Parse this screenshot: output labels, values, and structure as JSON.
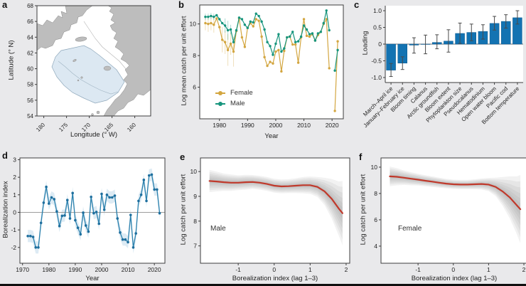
{
  "panels": {
    "a": {
      "label": "a",
      "xlabel": "Longitude (° W)",
      "ylabel": "Latitude (° N)"
    },
    "b": {
      "label": "b",
      "xlabel": "Year",
      "ylabel": "Log mean catch per unit effort",
      "legend": [
        "Female",
        "Male"
      ]
    },
    "c": {
      "label": "c",
      "ylabel": "Loading"
    },
    "d": {
      "label": "d",
      "xlabel": "Year",
      "ylabel": "Borealization index"
    },
    "e": {
      "label": "e",
      "xlabel": "Borealization index (lag 1–3)",
      "ylabel": "Log catch per unit effort",
      "annotation": "Male"
    },
    "f": {
      "label": "f",
      "xlabel": "Borealization index (lag 1–3)",
      "ylabel": "Log catch per unit effort",
      "annotation": "Female"
    }
  },
  "colors": {
    "female": "#d3a640",
    "male": "#17957d",
    "bar": "#1373b2",
    "bar_edge": "#0e5a8e",
    "index_line": "#2b81ad",
    "index_point": "#1e6f9e",
    "index_band": "#cfe2f0",
    "smooth_line": "#c0392b",
    "smooth_band": "#8a8a8a",
    "land": "#bdbdbd",
    "coast": "#8a8a8a",
    "survey_fill": "#dce8f2",
    "survey_edge": "#8fa8bb",
    "contour": "#b3b3b3",
    "frame": "#3c3c3c",
    "zero": "#9c9c9c",
    "err": "#4a4a4a",
    "background": "#e9e9eb"
  },
  "chart_data": [
    {
      "panel": "a",
      "type": "map",
      "xlabel": "Longitude (° W)",
      "ylabel": "Latitude (° N)",
      "lon_ticks": [
        180,
        175,
        170,
        165,
        160
      ],
      "lat_ticks": [
        68,
        66,
        64,
        62,
        60,
        58,
        56,
        54
      ],
      "xlim": [
        181.5,
        156.5
      ],
      "ylim": [
        54,
        68
      ],
      "features": [
        "land-masses",
        "survey-area-shaded",
        "bathymetry-contours"
      ]
    },
    {
      "panel": "b",
      "type": "line",
      "xlabel": "Year",
      "ylabel": "Log mean catch per unit effort",
      "x_ticks": [
        1980,
        1990,
        2000,
        2010,
        2020
      ],
      "y_ticks": [
        6,
        8,
        10
      ],
      "xlim": [
        1973,
        2024
      ],
      "ylim": [
        4,
        11.2
      ],
      "start_year": 1975,
      "series": [
        {
          "name": "Female",
          "values": [
            10.05,
            10.0,
            10.05,
            9.95,
            10.35,
            9.8,
            9.0,
            8.85,
            8.35,
            8.75,
            8.25,
            9.55,
            10.35,
            9.15,
            8.55,
            9.75,
            10.05,
            9.85,
            10.3,
            10.2,
            9.2,
            7.9,
            7.35,
            7.6,
            7.5,
            8.25,
            8.35,
            7.0,
            8.3,
            9.15,
            9.2,
            8.7,
            8.7,
            7.55,
            9.15,
            10.3,
            9.25,
            9.2,
            9.35,
            8.95,
            9.3,
            9.5,
            10.0,
            10.3,
            7.2,
            null,
            4.5,
            8.9
          ]
        },
        {
          "name": "Male",
          "values": [
            10.45,
            10.45,
            10.5,
            10.45,
            10.55,
            10.3,
            10.05,
            9.9,
            9.6,
            9.65,
            8.85,
            9.6,
            10.4,
            10.3,
            9.95,
            9.75,
            10.15,
            10.1,
            10.65,
            10.5,
            10.15,
            9.65,
            8.85,
            8.6,
            8.05,
            8.75,
            9.35,
            8.25,
            8.45,
            9.15,
            9.2,
            9.5,
            8.85,
            8.9,
            9.2,
            9.9,
            9.65,
            9.35,
            9.4,
            8.95,
            9.4,
            9.5,
            10.05,
            10.85,
            9.6,
            null,
            7.05,
            8.35
          ]
        }
      ],
      "errors": {
        "Female": {
          "1975": 0.45,
          "1976": 0.5,
          "1977": 0.45,
          "1978": 0.5,
          "1981": 0.8,
          "1982": 0.75,
          "1983": 1.0,
          "1984": 0.7,
          "1985": 0.95
        },
        "Male": {
          "1975": 0.2,
          "1976": 0.2,
          "1977": 0.2,
          "1978": 0.2,
          "1982": 0.45,
          "1983": 0.6,
          "1984": 0.3
        }
      }
    },
    {
      "panel": "c",
      "type": "bar",
      "ylabel": "Loading",
      "y_ticks": [
        "1.0",
        "0.5",
        "0",
        "-0.5",
        "-1.0"
      ],
      "ylim": [
        -1.15,
        1.15
      ],
      "categories": [
        "March–April ice",
        "January–February ice",
        "Bloom timing",
        "Calanus",
        "Arctic groundfish",
        "Bloom extent",
        "Phytoplankton size",
        "Pseudocalanus",
        "Hematodinium",
        "Open water bloom",
        "Pacific cod",
        "Bottom temperature"
      ],
      "values": [
        -0.78,
        -0.57,
        -0.03,
        -0.01,
        0.05,
        0.09,
        0.32,
        0.35,
        0.38,
        0.62,
        0.68,
        0.79
      ],
      "errors_low": [
        -0.97,
        -0.76,
        -0.27,
        -0.29,
        -0.14,
        -0.24,
        0.02,
        0.1,
        0.15,
        0.42,
        0.48,
        0.6
      ],
      "errors_high": [
        -0.58,
        -0.38,
        0.19,
        0.27,
        0.28,
        0.43,
        0.63,
        0.6,
        0.58,
        0.83,
        0.88,
        1.0
      ]
    },
    {
      "panel": "d",
      "type": "line",
      "xlabel": "Year",
      "ylabel": "Borealization index",
      "x_ticks": [
        1970,
        1980,
        1990,
        2000,
        2010,
        2020
      ],
      "y_ticks": [
        -2,
        -1,
        0,
        1,
        2,
        3
      ],
      "xlim": [
        1969,
        2024
      ],
      "ylim": [
        -2.9,
        3.1
      ],
      "start_year": 1972,
      "band_halfwidth": 0.35,
      "values": [
        -1.35,
        -1.35,
        -1.4,
        -2.0,
        -2.0,
        -0.6,
        0.55,
        1.45,
        0.5,
        0.85,
        0.75,
        0.05,
        -0.78,
        -0.2,
        -0.18,
        0.7,
        -0.35,
        1.1,
        -0.45,
        -0.88,
        -1.25,
        -0.02,
        -0.75,
        -1.1,
        0.88,
        -0.05,
        0.02,
        -0.65,
        1.05,
        0.15,
        1.0,
        0.85,
        0.85,
        0.95,
        -0.35,
        -1.15,
        -1.55,
        -1.55,
        -1.7,
        -0.15,
        -2.0,
        -1.2,
        0.65,
        1.0,
        1.85,
        0.65,
        2.1,
        2.15,
        1.3,
        1.3,
        -0.05
      ]
    },
    {
      "panel": "e",
      "type": "smooth",
      "series_label": "Male",
      "xlabel": "Borealization index (lag 1–3)",
      "ylabel": "Log catch per unit effort",
      "x_ticks": [
        -1,
        0,
        1,
        2
      ],
      "y_ticks": [
        7,
        8,
        9,
        10
      ],
      "xlim": [
        -2.05,
        2.1
      ],
      "ylim": [
        6.3,
        10.55
      ],
      "x": [
        -1.8,
        -1.6,
        -1.4,
        -1.2,
        -1.0,
        -0.8,
        -0.6,
        -0.4,
        -0.2,
        0,
        0.2,
        0.4,
        0.6,
        0.8,
        1.0,
        1.2,
        1.4,
        1.6,
        1.8,
        1.9
      ],
      "y": [
        9.62,
        9.6,
        9.57,
        9.55,
        9.55,
        9.57,
        9.58,
        9.55,
        9.5,
        9.43,
        9.4,
        9.41,
        9.43,
        9.45,
        9.45,
        9.38,
        9.2,
        8.9,
        8.5,
        8.32
      ],
      "band": [
        0.45,
        0.4,
        0.35,
        0.33,
        0.3,
        0.3,
        0.28,
        0.28,
        0.28,
        0.28,
        0.28,
        0.28,
        0.3,
        0.33,
        0.35,
        0.4,
        0.55,
        0.8,
        1.1,
        1.3
      ]
    },
    {
      "panel": "f",
      "type": "smooth",
      "series_label": "Female",
      "xlabel": "Borealization index (lag 1–3)",
      "ylabel": "Log catch per unit effort",
      "x_ticks": [
        -1,
        0,
        1,
        2
      ],
      "y_ticks": [
        4,
        6,
        8,
        10
      ],
      "xlim": [
        -2.05,
        2.1
      ],
      "ylim": [
        2.7,
        10.7
      ],
      "x": [
        -1.8,
        -1.6,
        -1.4,
        -1.2,
        -1.0,
        -0.8,
        -0.6,
        -0.4,
        -0.2,
        0,
        0.2,
        0.4,
        0.6,
        0.8,
        1.0,
        1.2,
        1.4,
        1.6,
        1.8,
        1.9
      ],
      "y": [
        9.3,
        9.27,
        9.2,
        9.12,
        9.05,
        8.97,
        8.9,
        8.82,
        8.75,
        8.7,
        8.68,
        8.68,
        8.7,
        8.72,
        8.68,
        8.5,
        8.15,
        7.7,
        7.1,
        6.8
      ],
      "band": [
        0.75,
        0.65,
        0.55,
        0.5,
        0.45,
        0.42,
        0.4,
        0.38,
        0.36,
        0.35,
        0.35,
        0.35,
        0.38,
        0.42,
        0.5,
        0.7,
        1.1,
        1.6,
        2.2,
        2.6
      ]
    }
  ]
}
